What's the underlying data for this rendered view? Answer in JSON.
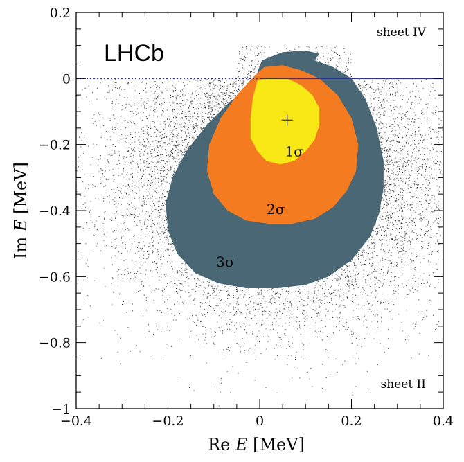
{
  "chart_data": {
    "type": "contour-scatter",
    "experiment_label": "LHCb",
    "xlabel": "Re E [MeV]",
    "ylabel": "Im E [MeV]",
    "xlabel_parts": [
      "Re ",
      "E",
      " [MeV]"
    ],
    "ylabel_parts": [
      "Im ",
      "E",
      " [MeV]"
    ],
    "xlim": [
      -0.4,
      0.4
    ],
    "ylim": [
      -1.0,
      0.2
    ],
    "x_ticks": [
      -0.4,
      -0.2,
      0,
      0.2,
      0.4
    ],
    "x_tick_labels": [
      "−0.4",
      "−0.2",
      "0",
      "0.2",
      "0.4"
    ],
    "y_ticks": [
      -1.0,
      -0.8,
      -0.6,
      -0.4,
      -0.2,
      0,
      0.2
    ],
    "y_tick_labels": [
      "−1",
      "−0.8",
      "−0.6",
      "−0.4",
      "−0.2",
      "0",
      "0.2"
    ],
    "sheet_labels": {
      "upper": "sheet IV",
      "lower": "sheet II"
    },
    "best_fit_point": {
      "x": 0.06,
      "y": -0.126,
      "marker": "+"
    },
    "branch_line": {
      "y": 0,
      "dotted_x": [
        -0.4,
        0
      ],
      "solid_x": [
        0,
        0.4
      ],
      "color": "#2a2ad8"
    },
    "regions": [
      {
        "label": "3σ",
        "color": "#4a6775",
        "label_pos": {
          "x": -0.075,
          "y": -0.57
        },
        "contour": [
          [
            0.0,
            -0.02
          ],
          [
            -0.005,
            0.02
          ],
          [
            0.005,
            0.055
          ],
          [
            0.05,
            0.08
          ],
          [
            0.1,
            0.085
          ],
          [
            0.13,
            0.075
          ],
          [
            0.12,
            0.055
          ],
          [
            0.16,
            0.035
          ],
          [
            0.2,
            0.0
          ],
          [
            0.23,
            -0.06
          ],
          [
            0.255,
            -0.15
          ],
          [
            0.27,
            -0.25
          ],
          [
            0.27,
            -0.33
          ],
          [
            0.26,
            -0.41
          ],
          [
            0.24,
            -0.48
          ],
          [
            0.2,
            -0.55
          ],
          [
            0.15,
            -0.6
          ],
          [
            0.1,
            -0.625
          ],
          [
            0.04,
            -0.635
          ],
          [
            -0.03,
            -0.635
          ],
          [
            -0.09,
            -0.62
          ],
          [
            -0.14,
            -0.59
          ],
          [
            -0.18,
            -0.53
          ],
          [
            -0.2,
            -0.46
          ],
          [
            -0.205,
            -0.38
          ],
          [
            -0.19,
            -0.3
          ],
          [
            -0.16,
            -0.22
          ],
          [
            -0.115,
            -0.14
          ],
          [
            -0.065,
            -0.07
          ],
          [
            -0.02,
            -0.03
          ]
        ]
      },
      {
        "label": "2σ",
        "color": "#f47b20",
        "label_pos": {
          "x": 0.035,
          "y": -0.41
        },
        "contour": [
          [
            -0.01,
            0.01
          ],
          [
            0.01,
            0.035
          ],
          [
            0.05,
            0.04
          ],
          [
            0.09,
            0.025
          ],
          [
            0.13,
            0.0
          ],
          [
            0.17,
            -0.05
          ],
          [
            0.2,
            -0.12
          ],
          [
            0.215,
            -0.2
          ],
          [
            0.21,
            -0.28
          ],
          [
            0.19,
            -0.34
          ],
          [
            0.16,
            -0.39
          ],
          [
            0.12,
            -0.425
          ],
          [
            0.07,
            -0.44
          ],
          [
            0.02,
            -0.44
          ],
          [
            -0.03,
            -0.43
          ],
          [
            -0.07,
            -0.4
          ],
          [
            -0.1,
            -0.35
          ],
          [
            -0.115,
            -0.28
          ],
          [
            -0.11,
            -0.2
          ],
          [
            -0.085,
            -0.12
          ],
          [
            -0.05,
            -0.05
          ]
        ]
      },
      {
        "label": "1σ",
        "color": "#f7e816",
        "label_pos": {
          "x": 0.075,
          "y": -0.235
        },
        "contour": [
          [
            -0.005,
            -0.005
          ],
          [
            0.02,
            0.003
          ],
          [
            0.06,
            0.0
          ],
          [
            0.09,
            -0.02
          ],
          [
            0.115,
            -0.05
          ],
          [
            0.13,
            -0.09
          ],
          [
            0.13,
            -0.14
          ],
          [
            0.12,
            -0.185
          ],
          [
            0.1,
            -0.22
          ],
          [
            0.075,
            -0.25
          ],
          [
            0.045,
            -0.26
          ],
          [
            0.015,
            -0.25
          ],
          [
            -0.005,
            -0.22
          ],
          [
            -0.02,
            -0.18
          ],
          [
            -0.02,
            -0.12
          ],
          [
            -0.015,
            -0.06
          ]
        ]
      }
    ],
    "scatter": {
      "color": "#000000",
      "description_points": "dense cloud of pseudo-experiment pole positions"
    }
  }
}
